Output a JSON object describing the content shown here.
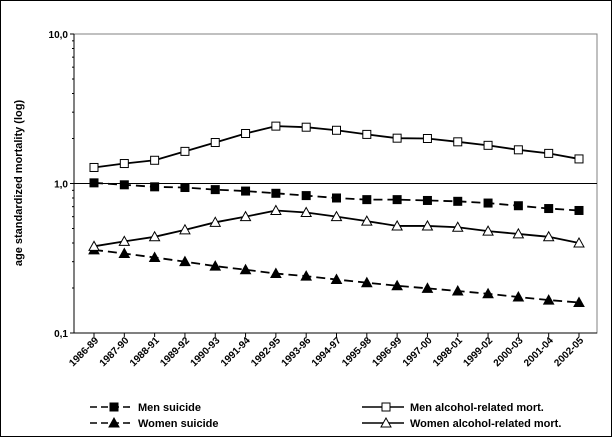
{
  "chart_data": {
    "type": "line",
    "title": "",
    "xlabel": "",
    "ylabel": "age standardized mortality (log)",
    "yscale": "log",
    "ylim": [
      0.1,
      10
    ],
    "yticks": [
      "0,1",
      "1,0",
      "10,0"
    ],
    "grid": false,
    "legend_position": "bottom",
    "categories": [
      "1986-89",
      "1987-90",
      "1988-91",
      "1989-92",
      "1990-93",
      "1991-94",
      "1992-95",
      "1993-96",
      "1994-97",
      "1995-98",
      "1996-99",
      "1997-00",
      "1998-01",
      "1999-02",
      "2000-03",
      "2001-04",
      "2002-05"
    ],
    "series": [
      {
        "name": "Men suicide",
        "marker": "filled-square",
        "line": "dashed",
        "values": [
          1.01,
          0.98,
          0.95,
          0.94,
          0.91,
          0.89,
          0.86,
          0.83,
          0.8,
          0.78,
          0.78,
          0.77,
          0.76,
          0.74,
          0.71,
          0.68,
          0.66
        ]
      },
      {
        "name": "Men alcohol-related mort.",
        "marker": "open-square",
        "line": "solid",
        "values": [
          1.28,
          1.36,
          1.43,
          1.64,
          1.88,
          2.16,
          2.42,
          2.38,
          2.27,
          2.13,
          2.01,
          2.0,
          1.9,
          1.8,
          1.68,
          1.59,
          1.46
        ]
      },
      {
        "name": "Women suicide",
        "marker": "filled-triangle",
        "line": "dashed",
        "values": [
          0.36,
          0.34,
          0.32,
          0.3,
          0.28,
          0.265,
          0.25,
          0.24,
          0.228,
          0.217,
          0.207,
          0.199,
          0.191,
          0.183,
          0.174,
          0.166,
          0.16
        ]
      },
      {
        "name": "Women alcohol-related mort.",
        "marker": "open-triangle",
        "line": "solid",
        "values": [
          0.38,
          0.41,
          0.44,
          0.49,
          0.55,
          0.6,
          0.66,
          0.64,
          0.6,
          0.56,
          0.52,
          0.52,
          0.51,
          0.48,
          0.46,
          0.44,
          0.4
        ]
      }
    ]
  }
}
